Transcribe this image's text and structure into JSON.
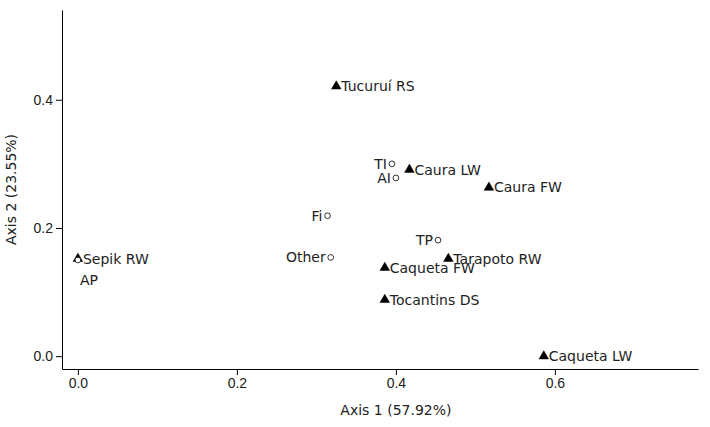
{
  "chart_data": {
    "type": "scatter",
    "x_label": "Axis 1 (57.92%)",
    "y_label": "Axis 2 (23.55%)",
    "xlim": [
      -0.02,
      0.78
    ],
    "ylim": [
      -0.02,
      0.54
    ],
    "xticks": [
      {
        "value": 0,
        "label": "0.0"
      },
      {
        "value": 0.2,
        "label": "0.2"
      },
      {
        "value": 0.4,
        "label": "0.4"
      },
      {
        "value": 0.6,
        "label": "0.6"
      }
    ],
    "yticks": [
      {
        "value": 0,
        "label": "0.0"
      },
      {
        "value": 0.2,
        "label": "0.2"
      },
      {
        "value": 0.4,
        "label": "0.4"
      }
    ],
    "series": [
      {
        "marker": "triangle",
        "color": "#000000",
        "labels": [
          "Tucuruí RS",
          "Caura LW",
          "Caura FW",
          "Sepik RW",
          "Tarapoto RW",
          "Caqueta FW",
          "Tocantins DS",
          "Caqueta LW"
        ],
        "x": [
          0.325,
          0.417,
          0.517,
          0.0,
          0.466,
          0.386,
          0.386,
          0.586
        ],
        "values": [
          0.421,
          0.291,
          0.263,
          0.152,
          0.152,
          0.138,
          0.088,
          0.0
        ]
      },
      {
        "marker": "open-circle",
        "color": "#000000",
        "labels": [
          "TI",
          "AI",
          "Fi",
          "TP",
          "Other",
          "AP"
        ],
        "x": [
          0.395,
          0.4,
          0.314,
          0.453,
          0.318,
          0.0
        ],
        "values": [
          0.3,
          0.278,
          0.219,
          0.181,
          0.154,
          0.15
        ]
      }
    ]
  }
}
